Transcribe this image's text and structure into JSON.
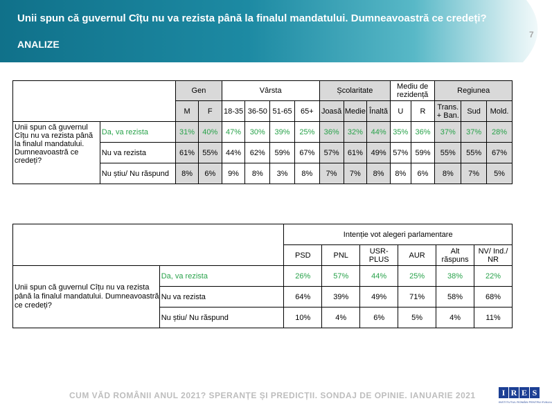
{
  "header": {
    "title": "Unii spun că guvernul Cîțu nu va rezista până la finalul mandatului. Dumneavoastră ce credeți?",
    "subtitle": "ANALIZE",
    "page_number": "7"
  },
  "table1": {
    "question": "Unii spun că guvernul Cîțu nu va rezista până la finalul mandatului. Dumneavoastră ce credeți?",
    "groups": [
      "Gen",
      "Vârsta",
      "Școlaritate",
      "Mediu de rezidență",
      "Regiunea"
    ],
    "columns": [
      "M",
      "F",
      "18-35",
      "36-50",
      "51-65",
      "65+",
      "Joasă",
      "Medie",
      "Înaltă",
      "U",
      "R",
      "Trans. + Ban.",
      "Sud",
      "Mold."
    ],
    "rows": [
      {
        "label": "Da, va rezista",
        "values": [
          "31%",
          "40%",
          "47%",
          "30%",
          "39%",
          "25%",
          "36%",
          "32%",
          "44%",
          "35%",
          "36%",
          "37%",
          "37%",
          "28%"
        ]
      },
      {
        "label": "Nu va rezista",
        "values": [
          "61%",
          "55%",
          "44%",
          "62%",
          "59%",
          "67%",
          "57%",
          "61%",
          "49%",
          "57%",
          "59%",
          "55%",
          "55%",
          "67%"
        ]
      },
      {
        "label": "Nu știu/ Nu răspund",
        "values": [
          "8%",
          "6%",
          "9%",
          "8%",
          "3%",
          "8%",
          "7%",
          "7%",
          "8%",
          "8%",
          "6%",
          "8%",
          "7%",
          "5%"
        ]
      }
    ]
  },
  "table2": {
    "question": "Unii spun că guvernul Cîțu nu va rezista până la finalul mandatului. Dumneavoastră ce credeți?",
    "group": "Intenție vot alegeri parlamentare",
    "columns": [
      "PSD",
      "PNL",
      "USR-PLUS",
      "AUR",
      "Alt răspuns",
      "NV/ Ind./ NR"
    ],
    "rows": [
      {
        "label": "Da, va rezista",
        "values": [
          "26%",
          "57%",
          "44%",
          "25%",
          "38%",
          "22%"
        ]
      },
      {
        "label": "Nu va rezista",
        "values": [
          "64%",
          "39%",
          "49%",
          "71%",
          "58%",
          "68%"
        ]
      },
      {
        "label": "Nu știu/ Nu răspund",
        "values": [
          "10%",
          "4%",
          "6%",
          "5%",
          "4%",
          "11%"
        ]
      }
    ]
  },
  "footer": {
    "text": "CUM VĂD ROMÂNII ANUL 2021? SPERANȚE ȘI PREDICȚII. SONDAJ DE OPINIE. IANUARIE 2021",
    "logo_letters": [
      "I",
      "R",
      "E",
      "S"
    ],
    "logo_tagline": "INSTITUTUL ROMÂN PENTRU EVALUARE ȘI STRATEGIE"
  },
  "colors": {
    "banner": "#1d8aa3",
    "highlight_row": "#28a24a",
    "shaded_cell": "#d9d9d9",
    "logo": "#1c3f94"
  }
}
